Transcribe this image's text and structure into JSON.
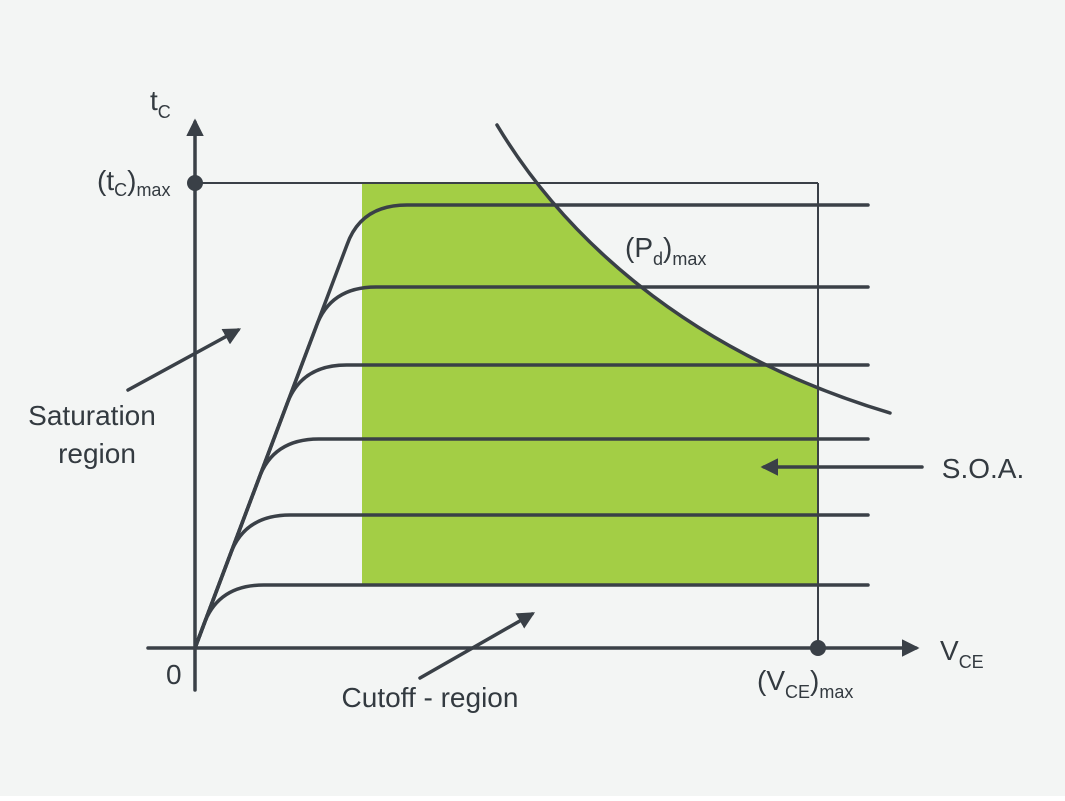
{
  "y_axis_label": [
    {
      "text": "t"
    },
    {
      "sub": "C"
    }
  ],
  "y_max_label": [
    {
      "text": "(t"
    },
    {
      "sub": "C"
    },
    {
      "text": ")"
    },
    {
      "sub": "max"
    }
  ],
  "x_axis_label": [
    {
      "text": "V"
    },
    {
      "sub": "CE"
    }
  ],
  "x_max_label": [
    {
      "text": "(V"
    },
    {
      "sub": "CE"
    },
    {
      "text": ")"
    },
    {
      "sub": "max"
    }
  ],
  "power_label": [
    {
      "text": "(P"
    },
    {
      "sub": "d"
    },
    {
      "text": ")"
    },
    {
      "sub": "max"
    }
  ],
  "origin_label": "0",
  "saturation_label": [
    "Saturation",
    "region"
  ],
  "cutoff_label": "Cutoff - region",
  "soa_label": "S.O.A."
}
